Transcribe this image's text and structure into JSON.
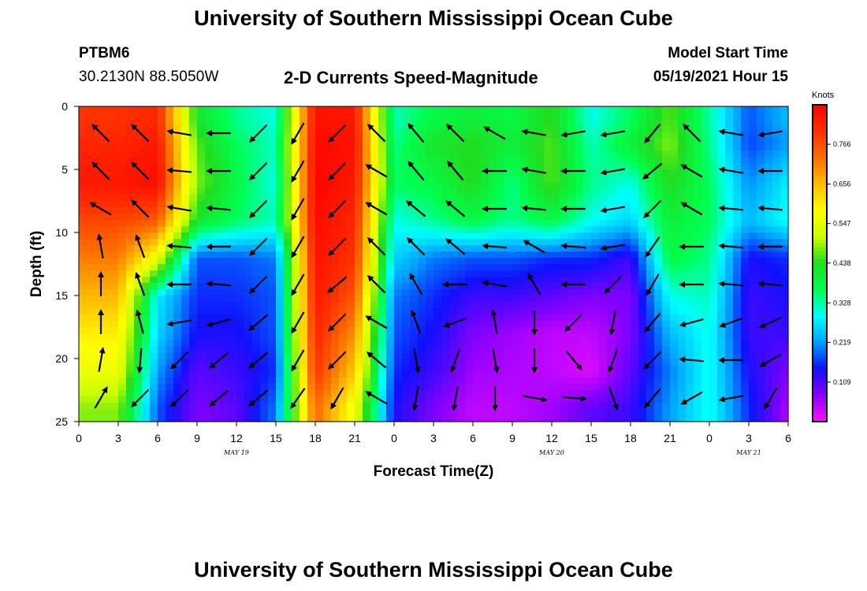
{
  "header": {
    "title": "University of Southern Mississippi Ocean Cube",
    "station_id": "PTBM6",
    "coords": "30.2130N  88.5050W",
    "plot_title": "2-D Currents Speed-Magnitude",
    "model_start_label": "Model Start Time",
    "model_start_value": "05/19/2021 Hour 15"
  },
  "footer": {
    "title": "University of Southern Mississippi Ocean Cube"
  },
  "chart_data": {
    "type": "heatmap",
    "title": "2-D Currents Speed-Magnitude",
    "xlabel": "Forecast Time(Z)",
    "ylabel": "Depth (ft)",
    "x_ticks": [
      "0",
      "3",
      "6",
      "9",
      "12",
      "15",
      "18",
      "21",
      "0",
      "3",
      "6",
      "9",
      "12",
      "15",
      "18",
      "21",
      "0",
      "3",
      "6"
    ],
    "x_range_hours": [
      0,
      54
    ],
    "y_ticks": [
      "0",
      "5",
      "10",
      "15",
      "20",
      "25"
    ],
    "y_range": [
      0,
      25
    ],
    "y_inverted": true,
    "date_labels": [
      {
        "text": "MAY 19",
        "hour": 12
      },
      {
        "text": "MAY 20",
        "hour": 36
      },
      {
        "text": "MAY 21",
        "hour": 51
      }
    ],
    "colorbar": {
      "unit": "Knots",
      "ticks": [
        "0.766",
        "0.656",
        "0.547",
        "0.438",
        "0.328",
        "0.219",
        "0.109"
      ],
      "tick_values": [
        0.766,
        0.656,
        0.547,
        0.438,
        0.328,
        0.219,
        0.109
      ],
      "range": [
        0.0,
        0.875
      ],
      "colors": [
        "#ff10ff",
        "#8a00ff",
        "#1010ff",
        "#00a0ff",
        "#00ffff",
        "#00ff50",
        "#20dd20",
        "#c8ff00",
        "#ffff00",
        "#ffbb00",
        "#ff7000",
        "#ff3000",
        "#ff0000"
      ]
    },
    "time_columns_hours": [
      3,
      6,
      9,
      12,
      15,
      18,
      21,
      24,
      27,
      30,
      33,
      36,
      39,
      42,
      45,
      48,
      51,
      54
    ],
    "depth_rows_ft": [
      1,
      3,
      6,
      9,
      12,
      15,
      18,
      21,
      24
    ],
    "speed_knots_grid": [
      [
        0.8,
        0.82,
        0.42,
        0.34,
        0.3,
        0.85,
        0.84,
        0.32,
        0.38,
        0.4,
        0.38,
        0.44,
        0.3,
        0.36,
        0.46,
        0.33,
        0.18,
        0.24
      ],
      [
        0.82,
        0.84,
        0.46,
        0.36,
        0.32,
        0.86,
        0.85,
        0.34,
        0.42,
        0.44,
        0.4,
        0.46,
        0.32,
        0.4,
        0.48,
        0.34,
        0.17,
        0.22
      ],
      [
        0.84,
        0.86,
        0.48,
        0.38,
        0.3,
        0.87,
        0.84,
        0.36,
        0.38,
        0.44,
        0.34,
        0.46,
        0.34,
        0.3,
        0.44,
        0.36,
        0.21,
        0.28
      ],
      [
        0.78,
        0.76,
        0.42,
        0.36,
        0.32,
        0.86,
        0.82,
        0.3,
        0.34,
        0.38,
        0.34,
        0.38,
        0.3,
        0.26,
        0.4,
        0.36,
        0.24,
        0.3
      ],
      [
        0.72,
        0.56,
        0.18,
        0.18,
        0.2,
        0.85,
        0.8,
        0.26,
        0.2,
        0.18,
        0.18,
        0.16,
        0.16,
        0.12,
        0.38,
        0.34,
        0.14,
        0.16
      ],
      [
        0.66,
        0.28,
        0.16,
        0.16,
        0.18,
        0.84,
        0.76,
        0.2,
        0.16,
        0.12,
        0.12,
        0.1,
        0.08,
        0.08,
        0.3,
        0.32,
        0.12,
        0.14
      ],
      [
        0.6,
        0.26,
        0.14,
        0.14,
        0.18,
        0.82,
        0.7,
        0.18,
        0.14,
        0.08,
        0.06,
        0.04,
        0.04,
        0.08,
        0.24,
        0.3,
        0.12,
        0.12
      ],
      [
        0.56,
        0.22,
        0.1,
        0.12,
        0.16,
        0.8,
        0.64,
        0.16,
        0.12,
        0.06,
        0.05,
        0.04,
        0.02,
        0.1,
        0.2,
        0.3,
        0.14,
        0.08
      ],
      [
        0.48,
        0.18,
        0.08,
        0.1,
        0.2,
        0.74,
        0.56,
        0.14,
        0.08,
        0.04,
        0.04,
        0.06,
        0.1,
        0.12,
        0.22,
        0.3,
        0.16,
        0.05
      ]
    ],
    "vector_times_hours": [
      3,
      6,
      9,
      12,
      15,
      18,
      21,
      24,
      27,
      30,
      33,
      36,
      39,
      42,
      45,
      48,
      51,
      54
    ],
    "vector_depths_ft": [
      1.5,
      4.5,
      7.5,
      10.5,
      13.5,
      16.5,
      19.5,
      22.5
    ],
    "vector_direction_deg": [
      [
        315,
        315,
        280,
        270,
        225,
        210,
        225,
        315,
        320,
        315,
        300,
        280,
        260,
        260,
        220,
        315,
        280,
        260
      ],
      [
        315,
        315,
        275,
        270,
        225,
        210,
        225,
        300,
        320,
        320,
        270,
        280,
        270,
        260,
        230,
        300,
        280,
        270
      ],
      [
        300,
        315,
        280,
        275,
        225,
        210,
        225,
        300,
        310,
        310,
        270,
        275,
        270,
        260,
        225,
        300,
        275,
        275
      ],
      [
        350,
        340,
        275,
        270,
        225,
        210,
        225,
        315,
        315,
        310,
        275,
        300,
        275,
        260,
        215,
        270,
        275,
        270
      ],
      [
        0,
        340,
        270,
        275,
        225,
        210,
        230,
        315,
        330,
        270,
        280,
        330,
        270,
        225,
        210,
        270,
        275,
        275
      ],
      [
        0,
        345,
        260,
        255,
        230,
        210,
        225,
        300,
        340,
        250,
        350,
        180,
        225,
        190,
        220,
        255,
        250,
        245
      ],
      [
        10,
        185,
        225,
        230,
        230,
        210,
        225,
        310,
        170,
        200,
        170,
        180,
        140,
        200,
        225,
        275,
        270,
        240
      ],
      [
        30,
        225,
        225,
        230,
        230,
        215,
        210,
        300,
        190,
        190,
        180,
        100,
        95,
        160,
        220,
        240,
        260,
        210
      ]
    ]
  }
}
